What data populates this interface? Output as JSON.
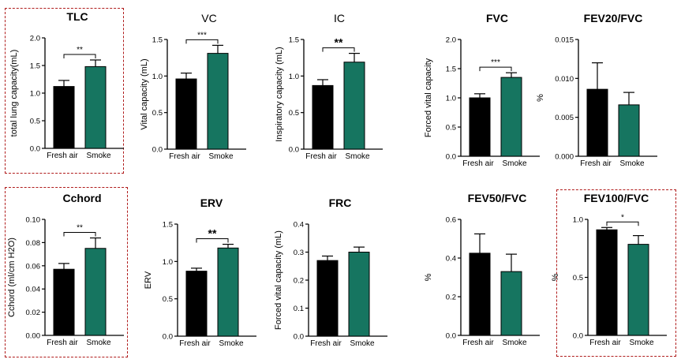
{
  "colors": {
    "control": "#000000",
    "smoke": "#167560",
    "border": "#b01c1c"
  },
  "chart_data": [
    {
      "id": "tlc",
      "type": "bar",
      "title": "TLC",
      "title_bold": true,
      "ylabel": "total lung capacity(mL)",
      "categories": [
        "Fresh air",
        "Smoke"
      ],
      "values": [
        1.12,
        1.48
      ],
      "errors": [
        0.11,
        0.12
      ],
      "ylim": [
        0,
        2.0
      ],
      "yticks": [
        "0.0",
        "0.5",
        "1.0",
        "1.5",
        "2.0"
      ],
      "significance": "**",
      "highlighted": true
    },
    {
      "id": "vc",
      "type": "bar",
      "title": "VC",
      "title_bold": false,
      "ylabel": "Vital capacity (mL)",
      "categories": [
        "Fresh air",
        "Smoke"
      ],
      "values": [
        0.96,
        1.31
      ],
      "errors": [
        0.08,
        0.11
      ],
      "ylim": [
        0,
        1.5
      ],
      "yticks": [
        "0.0",
        "0.5",
        "1.0",
        "1.5"
      ],
      "significance": "***",
      "highlighted": false
    },
    {
      "id": "ic",
      "type": "bar",
      "title": "IC",
      "title_bold": false,
      "ylabel": "Inspiratory capacity (mL)",
      "categories": [
        "Fresh air",
        "Smoke"
      ],
      "values": [
        0.87,
        1.19
      ],
      "errors": [
        0.08,
        0.12
      ],
      "ylim": [
        0,
        1.5
      ],
      "yticks": [
        "0.0",
        "0.5",
        "1.0",
        "1.5"
      ],
      "significance": "**",
      "highlighted": false
    },
    {
      "id": "fvc",
      "type": "bar",
      "title": "FVC",
      "title_bold": true,
      "ylabel": "Forced vital capacity",
      "categories": [
        "Fresh air",
        "Smoke"
      ],
      "values": [
        1.0,
        1.35
      ],
      "errors": [
        0.07,
        0.08
      ],
      "ylim": [
        0,
        2.0
      ],
      "yticks": [
        "0.0",
        "0.5",
        "1.0",
        "1.5",
        "2.0"
      ],
      "significance": "***",
      "highlighted": false
    },
    {
      "id": "fev20",
      "type": "bar",
      "title": "FEV20/FVC",
      "title_bold": true,
      "ylabel": "%",
      "categories": [
        "Fresh air",
        "Smoke"
      ],
      "values": [
        0.0086,
        0.0066
      ],
      "errors": [
        0.0034,
        0.0016
      ],
      "ylim": [
        0,
        0.015
      ],
      "yticks": [
        "0.000",
        "0.005",
        "0.010",
        "0.015"
      ],
      "significance": "",
      "highlighted": false
    },
    {
      "id": "cchord",
      "type": "bar",
      "title": "Cchord",
      "title_bold": true,
      "ylabel": "Cchord (ml/cm H2O)",
      "categories": [
        "Fresh air",
        "Smoke"
      ],
      "values": [
        0.057,
        0.075
      ],
      "errors": [
        0.005,
        0.009
      ],
      "ylim": [
        0,
        0.1
      ],
      "yticks": [
        "0.00",
        "0.02",
        "0.04",
        "0.06",
        "0.08",
        "0.10"
      ],
      "significance": "**",
      "highlighted": true
    },
    {
      "id": "erv",
      "type": "bar",
      "title": "ERV",
      "title_bold": true,
      "ylabel": "ERV",
      "categories": [
        "Fresh air",
        "Smoke"
      ],
      "values": [
        0.87,
        1.18
      ],
      "errors": [
        0.04,
        0.05
      ],
      "ylim": [
        0,
        1.5
      ],
      "yticks": [
        "0.0",
        "0.5",
        "1.0",
        "1.5"
      ],
      "significance": "**",
      "highlighted": false
    },
    {
      "id": "frc",
      "type": "bar",
      "title": "FRC",
      "title_bold": true,
      "ylabel": "Forced vital capacity (mL)",
      "categories": [
        "Fresh air",
        "Smoke"
      ],
      "values": [
        0.27,
        0.3
      ],
      "errors": [
        0.016,
        0.018
      ],
      "ylim": [
        0,
        0.4
      ],
      "yticks": [
        "0.0",
        "0.1",
        "0.2",
        "0.3",
        "0.4"
      ],
      "significance": "",
      "highlighted": false
    },
    {
      "id": "fev50",
      "type": "bar",
      "title": "FEV50/FVC",
      "title_bold": true,
      "ylabel": "%",
      "categories": [
        "Fresh air",
        "Smoke"
      ],
      "values": [
        0.425,
        0.33
      ],
      "errors": [
        0.1,
        0.09
      ],
      "ylim": [
        0,
        0.6
      ],
      "yticks": [
        "0.0",
        "0.2",
        "0.4",
        "0.6"
      ],
      "significance": "",
      "highlighted": false
    },
    {
      "id": "fev100",
      "type": "bar",
      "title": "FEV100/FVC",
      "title_bold": true,
      "ylabel": "%",
      "categories": [
        "Fresh air",
        "Smoke"
      ],
      "values": [
        0.91,
        0.785
      ],
      "errors": [
        0.02,
        0.075
      ],
      "ylim": [
        0,
        1.0
      ],
      "yticks": [
        "0.0",
        "0.5",
        "1.0"
      ],
      "significance": "*",
      "highlighted": true
    }
  ]
}
